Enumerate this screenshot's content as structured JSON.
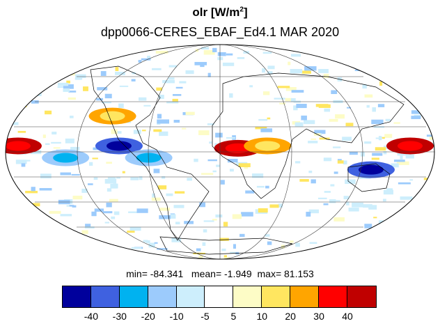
{
  "title": {
    "var": "olr [W/m",
    "sup": "2",
    "close": "]",
    "subtitle": "dpp0066-CERES_EBAF_Ed4.1  MAR 2020"
  },
  "stats": {
    "min_label": "min=",
    "min": "-84.341",
    "mean_label": "mean=",
    "mean": "-1.949",
    "max_label": "max=",
    "max": "81.153"
  },
  "colorbar": {
    "colors": [
      "#00009c",
      "#3f61e0",
      "#00b2f0",
      "#9ccbfc",
      "#cdeefc",
      "#ffffff",
      "#fdfcc6",
      "#ffe660",
      "#ffa500",
      "#ff0000",
      "#c00000"
    ],
    "ticks": [
      "-40",
      "-30",
      "-20",
      "-10",
      "-5",
      "5",
      "10",
      "20",
      "30",
      "40"
    ]
  },
  "map": {
    "projection": "mollweide",
    "ocean_color": "#ffffff",
    "coastline_color": "#000000",
    "anomaly_regions": [
      {
        "lon": -85,
        "lat": 5,
        "value": "negative-strong"
      },
      {
        "lon": 130,
        "lat": -15,
        "value": "negative-strong"
      },
      {
        "lon": 160,
        "lat": 5,
        "value": "positive-strong"
      },
      {
        "lon": -170,
        "lat": 5,
        "value": "positive-strong"
      },
      {
        "lon": 15,
        "lat": 3,
        "value": "positive-strong"
      },
      {
        "lon": -60,
        "lat": -5,
        "value": "negative"
      },
      {
        "lon": -130,
        "lat": -5,
        "value": "negative"
      },
      {
        "lon": -100,
        "lat": 30,
        "value": "positive"
      },
      {
        "lon": 40,
        "lat": 5,
        "value": "positive"
      }
    ]
  }
}
